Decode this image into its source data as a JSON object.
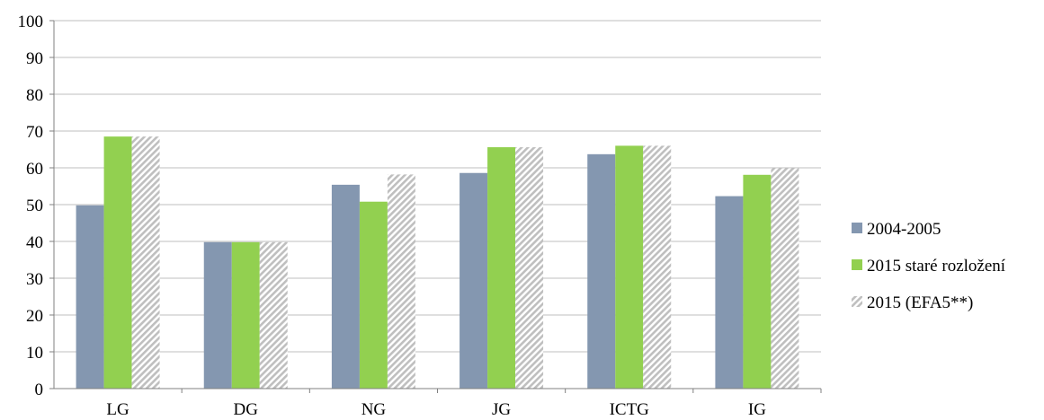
{
  "chart_data": {
    "type": "bar",
    "title": "",
    "xlabel": "",
    "ylabel": "",
    "ylim": [
      0,
      100
    ],
    "yticks": [
      0,
      10,
      20,
      30,
      40,
      50,
      60,
      70,
      80,
      90,
      100
    ],
    "grid": true,
    "legend_position": "right",
    "categories": [
      "LG",
      "DG",
      "NG",
      "JG",
      "ICTG",
      "IG"
    ],
    "series": [
      {
        "name": "2004-2005",
        "color": "#8497b0",
        "fill": "solid",
        "values": [
          49.8,
          39.8,
          55.4,
          58.6,
          63.7,
          52.3
        ]
      },
      {
        "name": "2015 staré rozložení",
        "color": "#92d050",
        "fill": "solid",
        "values": [
          68.5,
          39.8,
          50.8,
          65.6,
          66.0,
          58.1
        ]
      },
      {
        "name": "2015 (EFA5**)",
        "color": "#bfbfbf",
        "fill": "diagonal-hatch",
        "values": [
          68.5,
          39.8,
          58.2,
          65.6,
          66.0,
          59.9
        ]
      }
    ]
  }
}
